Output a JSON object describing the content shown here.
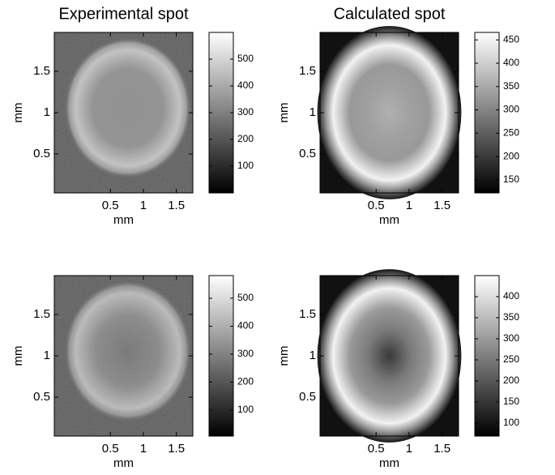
{
  "chart_data": [
    {
      "type": "heatmap",
      "title": "Experimental spot",
      "xlabel": "mm",
      "ylabel": "mm",
      "colormap": "gray",
      "xlim": [
        -0.35,
        1.75
      ],
      "ylim": [
        0.03,
        1.97
      ],
      "xticks": [
        0.5,
        1,
        1.5
      ],
      "yticks": [
        0.5,
        1,
        1.5
      ],
      "clim": [
        0,
        600
      ],
      "cticks": [
        100,
        200,
        300,
        400,
        500
      ]
    },
    {
      "type": "heatmap",
      "title": "Calculated spot",
      "xlabel": "mm",
      "ylabel": "mm",
      "colormap": "gray",
      "xlim": [
        -0.35,
        1.75
      ],
      "ylim": [
        0.03,
        1.97
      ],
      "xticks": [
        0.5,
        1,
        1.5
      ],
      "yticks": [
        0.5,
        1,
        1.5
      ],
      "clim": [
        122,
        466
      ],
      "cticks": [
        150,
        200,
        250,
        300,
        350,
        400,
        450
      ]
    },
    {
      "type": "heatmap",
      "xlabel": "mm",
      "ylabel": "mm",
      "colormap": "gray",
      "xlim": [
        -0.35,
        1.75
      ],
      "ylim": [
        0.03,
        1.97
      ],
      "xticks": [
        0.5,
        1,
        1.5
      ],
      "yticks": [
        0.5,
        1,
        1.5
      ],
      "clim": [
        7,
        581
      ],
      "cticks": [
        100,
        200,
        300,
        400,
        500
      ]
    },
    {
      "type": "heatmap",
      "xlabel": "mm",
      "ylabel": "mm",
      "colormap": "gray",
      "xlim": [
        -0.35,
        1.75
      ],
      "ylim": [
        0.03,
        1.97
      ],
      "xticks": [
        0.5,
        1,
        1.5
      ],
      "yticks": [
        0.5,
        1,
        1.5
      ],
      "clim": [
        69,
        450
      ],
      "cticks": [
        100,
        150,
        200,
        250,
        300,
        350,
        400
      ]
    }
  ]
}
